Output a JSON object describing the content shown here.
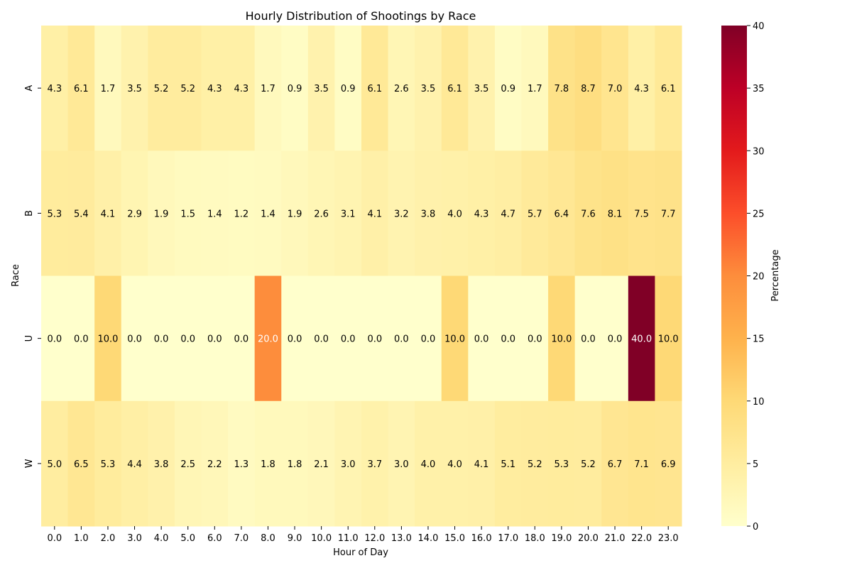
{
  "chart_data": {
    "type": "heatmap",
    "title": "Hourly Distribution of Shootings by Race",
    "xlabel": "Hour of Day",
    "ylabel": "Race",
    "x": [
      "0.0",
      "1.0",
      "2.0",
      "3.0",
      "4.0",
      "5.0",
      "6.0",
      "7.0",
      "8.0",
      "9.0",
      "10.0",
      "11.0",
      "12.0",
      "13.0",
      "14.0",
      "15.0",
      "16.0",
      "17.0",
      "18.0",
      "19.0",
      "20.0",
      "21.0",
      "22.0",
      "23.0"
    ],
    "y": [
      "A",
      "B",
      "U",
      "W"
    ],
    "values": [
      [
        4.3,
        6.1,
        1.7,
        3.5,
        5.2,
        5.2,
        4.3,
        4.3,
        1.7,
        0.9,
        3.5,
        0.9,
        6.1,
        2.6,
        3.5,
        6.1,
        3.5,
        0.9,
        1.7,
        7.8,
        8.7,
        7.0,
        4.3,
        6.1
      ],
      [
        5.3,
        5.4,
        4.1,
        2.9,
        1.9,
        1.5,
        1.4,
        1.2,
        1.4,
        1.9,
        2.6,
        3.1,
        4.1,
        3.2,
        3.8,
        4.0,
        4.3,
        4.7,
        5.7,
        6.4,
        7.6,
        8.1,
        7.5,
        7.7
      ],
      [
        0.0,
        0.0,
        10.0,
        0.0,
        0.0,
        0.0,
        0.0,
        0.0,
        20.0,
        0.0,
        0.0,
        0.0,
        0.0,
        0.0,
        0.0,
        10.0,
        0.0,
        0.0,
        0.0,
        10.0,
        0.0,
        0.0,
        40.0,
        10.0
      ],
      [
        5.0,
        6.5,
        5.3,
        4.4,
        3.8,
        2.5,
        2.2,
        1.3,
        1.8,
        1.8,
        2.1,
        3.0,
        3.7,
        3.0,
        4.0,
        4.0,
        4.1,
        5.1,
        5.2,
        5.3,
        5.2,
        6.7,
        7.1,
        6.9
      ]
    ],
    "colorbar": {
      "label": "Percentage",
      "range": [
        0,
        40
      ],
      "ticks": [
        "0",
        "5",
        "10",
        "15",
        "20",
        "25",
        "30",
        "35",
        "40"
      ],
      "colormap": "YlOrRd"
    }
  }
}
